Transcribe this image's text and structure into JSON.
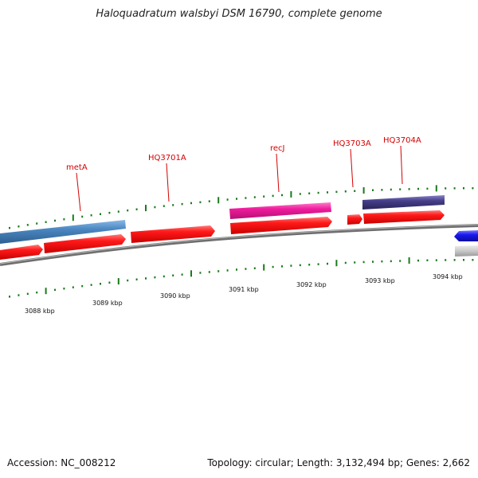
{
  "title": "Haloquadratum walsbyi DSM 16790, complete genome",
  "footer": {
    "accession": "Accession: NC_008212",
    "summary": "Topology: circular; Length: 3,132,494 bp; Genes: 2,662"
  },
  "colors": {
    "backbone": "#7a7a7a",
    "cds": "#ee1111",
    "tick": "#1a7a1a",
    "label": "#d40000",
    "metA": "#4a86c0",
    "recJ": "#ee1c9c",
    "HQ3704A": "#463e88",
    "blue_feature": "#1a1aee",
    "grey_feature": "#c8c8c8"
  },
  "gene_labels": [
    {
      "name": "metA"
    },
    {
      "name": "HQ3701A"
    },
    {
      "name": "recJ"
    },
    {
      "name": "HQ3703A"
    },
    {
      "name": "HQ3704A"
    }
  ],
  "kbp_labels": [
    "3088 kbp",
    "3089 kbp",
    "3090 kbp",
    "3091 kbp",
    "3092 kbp",
    "3093 kbp",
    "3094 kbp"
  ]
}
